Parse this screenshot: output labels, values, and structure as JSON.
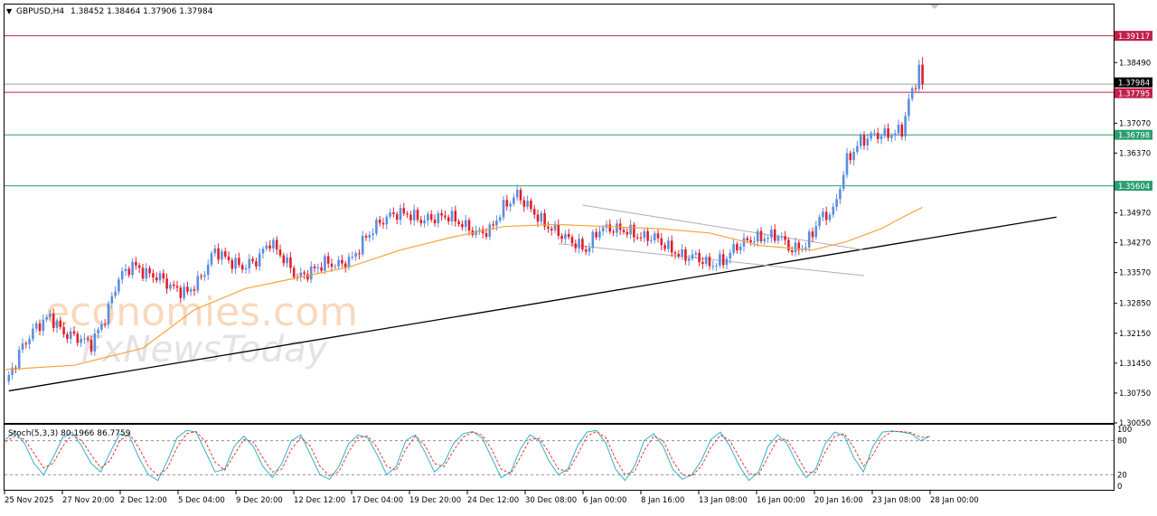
{
  "header": {
    "menu_arrow": "▼",
    "symbol_info": "GBPUSD,H4",
    "ohlc": "1.38452 1.38464 1.37906 1.37984"
  },
  "stoch_header": "Stoch(5,3,3) 80.1966 86.7759",
  "watermark": {
    "line1": "economies.com",
    "line2": "FxNewsToday"
  },
  "colors": {
    "bull": "#5b8ee0",
    "bear": "#e0202c",
    "ma": "#f5a43a",
    "resistance": "#c0204a",
    "support": "#2aa070",
    "trend": "#000000",
    "channel": "#b0b0b0",
    "stoch_main": "#2fb4c8",
    "stoch_signal": "#e83838",
    "price_label_current": "#000000"
  },
  "chart_data": {
    "type": "candlestick",
    "price_range": [
      1.3005,
      1.3985
    ],
    "price_ticks": [
      "1.38490",
      "1.37070",
      "1.36370",
      "1.34970",
      "1.34270",
      "1.33570",
      "1.32850",
      "1.32150",
      "1.31450",
      "1.30750",
      "1.30050"
    ],
    "price_tick_values": [
      1.3849,
      1.3707,
      1.3637,
      1.3497,
      1.3427,
      1.3357,
      1.3285,
      1.3215,
      1.3145,
      1.3075,
      1.3005
    ],
    "time_labels": [
      "25 Nov 2025",
      "27 Nov 20:00",
      "2 Dec 12:00",
      "5 Dec 04:00",
      "9 Dec 20:00",
      "12 Dec 12:00",
      "17 Dec 04:00",
      "19 Dec 20:00",
      "24 Dec 12:00",
      "30 Dec 08:00",
      "6 Jan 00:00",
      "8 Jan 16:00",
      "13 Jan 08:00",
      "16 Jan 00:00",
      "20 Jan 16:00",
      "23 Jan 08:00",
      "28 Jan 00:00"
    ],
    "price_labels": [
      {
        "text": "1.39117",
        "value": 1.39117,
        "role": "resistance"
      },
      {
        "text": "1.37984",
        "value": 1.37984,
        "role": "current"
      },
      {
        "text": "1.37795",
        "value": 1.37795,
        "role": "resistance"
      },
      {
        "text": "1.36798",
        "value": 1.36798,
        "role": "support"
      },
      {
        "text": "1.35604",
        "value": 1.35604,
        "role": "support"
      }
    ],
    "horizontal_levels": [
      {
        "value": 1.39117,
        "color": "#c0204a"
      },
      {
        "value": 1.37795,
        "color": "#c0204a"
      },
      {
        "value": 1.37984,
        "color": "#a0a0a0"
      },
      {
        "value": 1.36798,
        "color": "#2aa070"
      },
      {
        "value": 1.35604,
        "color": "#2aa070"
      }
    ],
    "close_path": [
      [
        0,
        1.3095
      ],
      [
        5,
        1.3185
      ],
      [
        9,
        1.323
      ],
      [
        13,
        1.3255
      ],
      [
        17,
        1.3215
      ],
      [
        21,
        1.3205
      ],
      [
        25,
        1.319
      ],
      [
        29,
        1.325
      ],
      [
        33,
        1.3345
      ],
      [
        37,
        1.3375
      ],
      [
        41,
        1.3355
      ],
      [
        45,
        1.3345
      ],
      [
        49,
        1.332
      ],
      [
        53,
        1.331
      ],
      [
        57,
        1.3345
      ],
      [
        61,
        1.341
      ],
      [
        65,
        1.3385
      ],
      [
        69,
        1.337
      ],
      [
        73,
        1.3385
      ],
      [
        77,
        1.343
      ],
      [
        81,
        1.339
      ],
      [
        85,
        1.3345
      ],
      [
        89,
        1.336
      ],
      [
        93,
        1.338
      ],
      [
        97,
        1.3375
      ],
      [
        101,
        1.339
      ],
      [
        105,
        1.344
      ],
      [
        109,
        1.3475
      ],
      [
        113,
        1.3495
      ],
      [
        117,
        1.3495
      ],
      [
        121,
        1.348
      ],
      [
        125,
        1.3485
      ],
      [
        129,
        1.349
      ],
      [
        133,
        1.347
      ],
      [
        137,
        1.345
      ],
      [
        141,
        1.3455
      ],
      [
        145,
        1.351
      ],
      [
        149,
        1.354
      ],
      [
        153,
        1.3505
      ],
      [
        157,
        1.347
      ],
      [
        161,
        1.345
      ],
      [
        165,
        1.343
      ],
      [
        169,
        1.341
      ],
      [
        173,
        1.346
      ],
      [
        177,
        1.346
      ],
      [
        181,
        1.3455
      ],
      [
        185,
        1.344
      ],
      [
        189,
        1.344
      ],
      [
        193,
        1.3415
      ],
      [
        197,
        1.3395
      ],
      [
        201,
        1.3395
      ],
      [
        205,
        1.3375
      ],
      [
        209,
        1.3385
      ],
      [
        213,
        1.342
      ],
      [
        217,
        1.3435
      ],
      [
        221,
        1.344
      ],
      [
        225,
        1.3445
      ],
      [
        229,
        1.341
      ],
      [
        233,
        1.342
      ],
      [
        237,
        1.3485
      ],
      [
        241,
        1.35
      ],
      [
        245,
        1.362
      ],
      [
        249,
        1.3665
      ],
      [
        253,
        1.368
      ],
      [
        257,
        1.368
      ],
      [
        261,
        1.369
      ],
      [
        263,
        1.376
      ],
      [
        265,
        1.38
      ],
      [
        266,
        1.3845
      ],
      [
        267,
        1.3798
      ]
    ],
    "moving_average": [
      [
        0,
        1.313
      ],
      [
        20,
        1.314
      ],
      [
        40,
        1.318
      ],
      [
        55,
        1.327
      ],
      [
        70,
        1.332
      ],
      [
        85,
        1.3345
      ],
      [
        100,
        1.337
      ],
      [
        115,
        1.341
      ],
      [
        130,
        1.344
      ],
      [
        145,
        1.3465
      ],
      [
        160,
        1.347
      ],
      [
        175,
        1.3465
      ],
      [
        190,
        1.346
      ],
      [
        205,
        1.345
      ],
      [
        220,
        1.342
      ],
      [
        235,
        1.341
      ],
      [
        245,
        1.343
      ],
      [
        255,
        1.346
      ],
      [
        262,
        1.349
      ],
      [
        267,
        1.351
      ]
    ],
    "trendline": {
      "from": [
        1,
        1.308
      ],
      "to": [
        306,
        1.3487
      ]
    },
    "channel_upper": {
      "from": [
        168,
        1.3515
      ],
      "to": [
        250,
        1.341
      ]
    },
    "channel_lower": {
      "from": [
        161,
        1.3425
      ],
      "to": [
        250,
        1.335
      ]
    },
    "stochastic": {
      "levels": [
        20,
        80
      ],
      "axis_ticks": [
        "100",
        "80",
        "20",
        "0"
      ],
      "main": [
        82,
        95,
        75,
        40,
        20,
        50,
        85,
        95,
        70,
        40,
        25,
        60,
        92,
        88,
        50,
        20,
        10,
        45,
        85,
        98,
        95,
        60,
        25,
        30,
        70,
        88,
        70,
        35,
        15,
        40,
        80,
        90,
        55,
        20,
        12,
        35,
        75,
        90,
        85,
        55,
        20,
        35,
        80,
        90,
        60,
        25,
        40,
        75,
        92,
        96,
        85,
        50,
        15,
        25,
        65,
        90,
        80,
        45,
        20,
        30,
        70,
        95,
        98,
        75,
        30,
        10,
        35,
        80,
        92,
        70,
        30,
        12,
        20,
        45,
        82,
        95,
        70,
        35,
        10,
        25,
        70,
        90,
        75,
        40,
        15,
        30,
        75,
        95,
        88,
        50,
        25,
        70,
        95,
        97,
        95,
        92,
        80,
        88
      ],
      "signal": [
        78,
        88,
        82,
        58,
        32,
        40,
        70,
        90,
        80,
        55,
        32,
        45,
        80,
        92,
        68,
        35,
        18,
        32,
        68,
        92,
        96,
        78,
        42,
        28,
        55,
        82,
        78,
        50,
        25,
        30,
        65,
        86,
        70,
        35,
        18,
        26,
        60,
        86,
        88,
        68,
        35,
        28,
        65,
        88,
        72,
        40,
        34,
        62,
        86,
        95,
        90,
        65,
        30,
        22,
        50,
        82,
        84,
        60,
        30,
        26,
        55,
        88,
        96,
        85,
        48,
        20,
        26,
        62,
        88,
        80,
        45,
        20,
        18,
        35,
        68,
        90,
        80,
        50,
        22,
        20,
        52,
        82,
        82,
        55,
        25,
        24,
        60,
        88,
        92,
        68,
        35,
        55,
        85,
        96,
        96,
        94,
        86,
        87
      ]
    }
  }
}
